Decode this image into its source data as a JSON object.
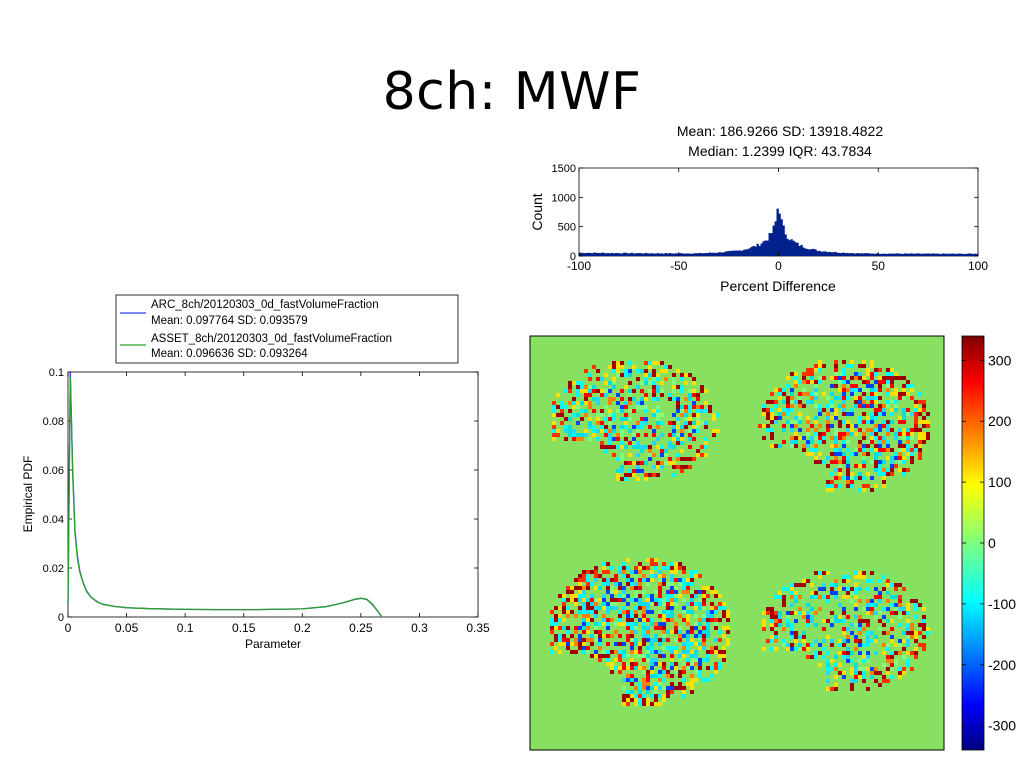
{
  "slide": {
    "title": "8ch: MWF"
  },
  "chart_data": [
    {
      "type": "line",
      "title": "",
      "xlabel": "Parameter",
      "ylabel": "Empirical PDF",
      "xlim": [
        0,
        0.35
      ],
      "ylim": [
        0,
        0.1
      ],
      "x_ticks": [
        "0",
        "0.05",
        "0.1",
        "0.15",
        "0.2",
        "0.25",
        "0.3",
        "0.35"
      ],
      "y_ticks": [
        "0",
        "0.02",
        "0.04",
        "0.06",
        "0.08",
        "0.1"
      ],
      "legend": {
        "placement": "top",
        "entries": [
          {
            "label": "ARC_8ch/20120303_0d_fastVolumeFraction",
            "stats": "Mean: 0.097764 SD: 0.093579",
            "color": "#2b3df5"
          },
          {
            "label": "ASSET_8ch/20120303_0d_fastVolumeFraction",
            "stats": "Mean: 0.096636 SD: 0.093264",
            "color": "#2ca02c"
          }
        ]
      },
      "series": [
        {
          "name": "ARC_8ch/20120303_0d_fastVolumeFraction",
          "x": [
            0,
            0.002,
            0.004,
            0.006,
            0.008,
            0.01,
            0.013,
            0.016,
            0.02,
            0.025,
            0.03,
            0.04,
            0.05,
            0.07,
            0.1,
            0.13,
            0.16,
            0.2,
            0.22,
            0.235,
            0.245,
            0.25,
            0.255,
            0.26,
            0.265,
            0.268
          ],
          "y": [
            0.005,
            0.1,
            0.06,
            0.035,
            0.025,
            0.019,
            0.014,
            0.0105,
            0.008,
            0.0062,
            0.0052,
            0.0043,
            0.0038,
            0.0034,
            0.0031,
            0.003,
            0.003,
            0.0033,
            0.0042,
            0.0058,
            0.0072,
            0.0076,
            0.0072,
            0.005,
            0.002,
            0
          ]
        },
        {
          "name": "ASSET_8ch/20120303_0d_fastVolumeFraction",
          "x": [
            0,
            0.002,
            0.004,
            0.006,
            0.008,
            0.01,
            0.013,
            0.016,
            0.02,
            0.025,
            0.03,
            0.04,
            0.05,
            0.07,
            0.1,
            0.13,
            0.16,
            0.2,
            0.22,
            0.235,
            0.245,
            0.25,
            0.255,
            0.26,
            0.265,
            0.268
          ],
          "y": [
            0.005,
            0.098,
            0.058,
            0.034,
            0.024,
            0.0185,
            0.0138,
            0.0103,
            0.0079,
            0.0061,
            0.0051,
            0.0043,
            0.0038,
            0.0034,
            0.0031,
            0.003,
            0.003,
            0.0033,
            0.0042,
            0.0058,
            0.0073,
            0.0077,
            0.0073,
            0.0052,
            0.0021,
            0
          ]
        }
      ]
    },
    {
      "type": "bar",
      "title": "Mean: 186.9266 SD: 13918.4822",
      "subtitle": "Median: 1.2399 IQR: 43.7834",
      "xlabel": "Percent Difference",
      "ylabel": "Count",
      "xlim": [
        -100,
        100
      ],
      "ylim": [
        0,
        1500
      ],
      "x_ticks": [
        "-100",
        "-50",
        "0",
        "50",
        "100"
      ],
      "y_ticks": [
        "0",
        "500",
        "1000",
        "1500"
      ],
      "color": "#00208c",
      "profile_x": [
        -100,
        -80,
        -60,
        -40,
        -30,
        -20,
        -15,
        -10,
        -6,
        -4,
        -2,
        -1,
        0,
        1,
        2,
        4,
        6,
        10,
        15,
        20,
        30,
        40,
        60,
        80,
        100
      ],
      "profile_y": [
        55,
        50,
        45,
        45,
        60,
        90,
        130,
        190,
        280,
        360,
        500,
        650,
        980,
        650,
        500,
        360,
        280,
        190,
        130,
        90,
        60,
        45,
        40,
        38,
        38
      ]
    },
    {
      "type": "heatmap",
      "colorbar_ticks": [
        "300",
        "200",
        "100",
        "0",
        "-100",
        "-200",
        "-300"
      ],
      "clim": [
        -340,
        340
      ],
      "background_color": "#88e060"
    }
  ]
}
